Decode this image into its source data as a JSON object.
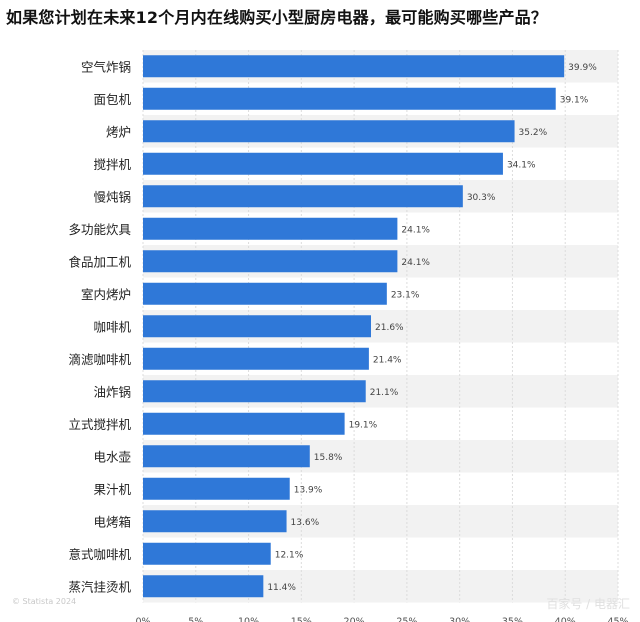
{
  "chart_data": {
    "type": "bar",
    "orientation": "horizontal",
    "title": "如果您计划在未来12个月内在线购买小型厨房电器，最可能购买哪些产品？",
    "categories": [
      "空气炸锅",
      "面包机",
      "烤炉",
      "搅拌机",
      "慢炖锅",
      "多功能炊具",
      "食品加工机",
      "室内烤炉",
      "咖啡机",
      "滴滤咖啡机",
      "油炸锅",
      "立式搅拌机",
      "电水壶",
      "果汁机",
      "电烤箱",
      "意式咖啡机",
      "蒸汽挂烫机"
    ],
    "values": [
      39.9,
      39.1,
      35.2,
      34.1,
      30.3,
      24.1,
      24.1,
      23.1,
      21.6,
      21.4,
      21.1,
      19.1,
      15.8,
      13.9,
      13.6,
      12.1,
      11.4
    ],
    "value_labels": [
      "39.9%",
      "39.1%",
      "35.2%",
      "34.1%",
      "30.3%",
      "24.1%",
      "24.1%",
      "23.1%",
      "21.6%",
      "21.4%",
      "21.1%",
      "19.1%",
      "15.8%",
      "13.9%",
      "13.6%",
      "12.1%",
      "11.4%"
    ],
    "xlim": [
      0,
      45
    ],
    "xticks": [
      "0%",
      "5%",
      "10%",
      "15%",
      "20%",
      "25%",
      "30%",
      "35%",
      "40%",
      "45%"
    ],
    "color": "#2f78d8",
    "grid": true
  },
  "footer": {
    "source": "© Statista 2024",
    "watermark": "百家号 / 电器汇"
  }
}
